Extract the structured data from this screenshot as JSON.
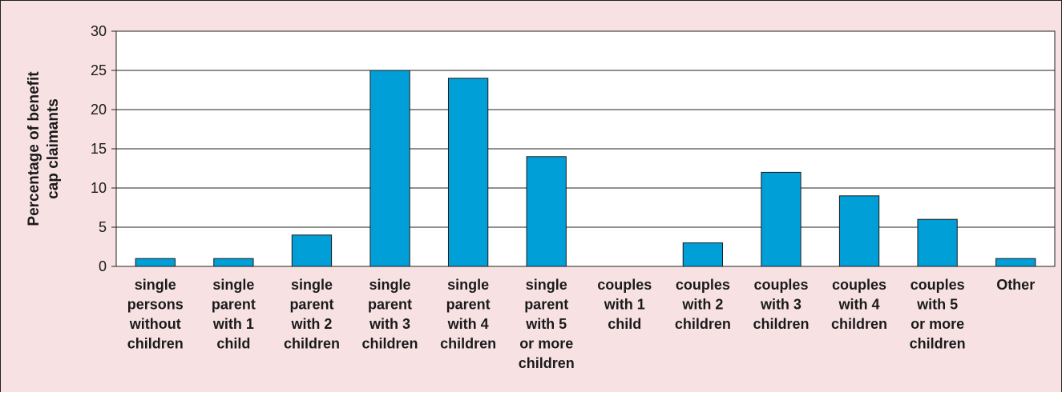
{
  "colors": {
    "panel_background": "#f7e1e3",
    "panel_border": "#222222",
    "plot_background": "#ffffff",
    "bar_fill": "#009fd8",
    "bar_stroke": "#1a1a1a",
    "gridline": "#222222"
  },
  "chart_data": {
    "type": "bar",
    "title": "",
    "xlabel": "",
    "ylabel": "Percentage of benefit cap claimants",
    "ylabel_lines": [
      "Percentage of benefit",
      "cap claimants"
    ],
    "ylim": [
      0,
      30
    ],
    "yticks": [
      0,
      5,
      10,
      15,
      20,
      25,
      30
    ],
    "grid": true,
    "legend": "none",
    "categories": [
      "single persons without children",
      "single parent with 1 child",
      "single parent with 2 children",
      "single parent with 3 children",
      "single parent with 4 children",
      "single parent with 5 or more children",
      "couples with 1 child",
      "couples with 2 children",
      "couples with 3 children",
      "couples with 4 children",
      "couples with 5 or more children",
      "Other"
    ],
    "category_lines": [
      [
        "single",
        "persons",
        "without",
        "children"
      ],
      [
        "single",
        "parent",
        "with 1",
        "child"
      ],
      [
        "single",
        "parent",
        "with 2",
        "children"
      ],
      [
        "single",
        "parent",
        "with 3",
        "children"
      ],
      [
        "single",
        "parent",
        "with 4",
        "children"
      ],
      [
        "single",
        "parent",
        "with 5",
        "or more",
        "children"
      ],
      [
        "couples",
        "with 1",
        "child"
      ],
      [
        "couples",
        "with 2",
        "children"
      ],
      [
        "couples",
        "with 3",
        "children"
      ],
      [
        "couples",
        "with 4",
        "children"
      ],
      [
        "couples",
        "with 5",
        "or more",
        "children"
      ],
      [
        "Other"
      ]
    ],
    "values": [
      1,
      1,
      4,
      25,
      24,
      14,
      0,
      3,
      12,
      9,
      6,
      1
    ]
  }
}
